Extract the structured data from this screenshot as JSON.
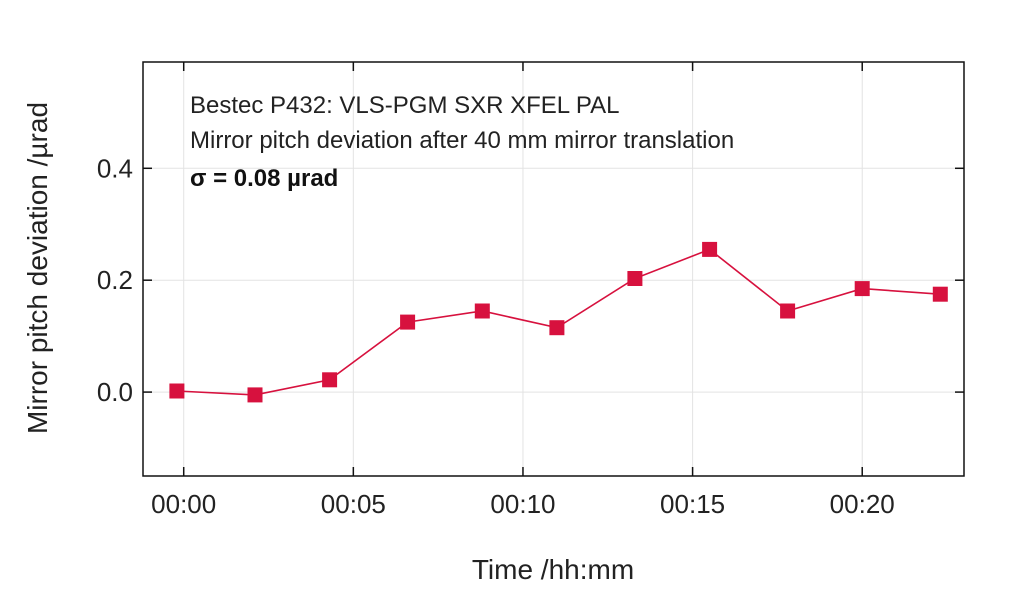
{
  "chart_data": {
    "type": "line",
    "title": "",
    "xlabel": "Time /hh:mm",
    "ylabel": "Mirror pitch deviation /µrad",
    "x_tick_labels": [
      "00:00",
      "00:05",
      "00:10",
      "00:15",
      "00:20"
    ],
    "x_ticks_minutes": [
      0,
      5,
      10,
      15,
      20
    ],
    "y_tick_labels": [
      "0.0",
      "0.2",
      "0.4"
    ],
    "y_ticks": [
      0.0,
      0.2,
      0.4
    ],
    "xlim_minutes": [
      -1.2,
      23.0
    ],
    "ylim": [
      -0.15,
      0.59
    ],
    "grid": true,
    "marker": "square",
    "colors": {
      "series": "#d7113e",
      "axis": "#111111",
      "grid": "#e3e3e3"
    },
    "annotations": [
      "Bestec P432: VLS-PGM SXR XFEL PAL",
      "Mirror pitch deviation after 40 mm mirror translation",
      "σ = 0.08 µrad"
    ],
    "series": [
      {
        "x_minutes": [
          -0.2,
          2.1,
          4.3,
          6.6,
          8.8,
          11.0,
          13.3,
          15.5,
          17.8,
          20.0,
          22.3
        ],
        "values": [
          0.002,
          -0.005,
          0.022,
          0.125,
          0.145,
          0.115,
          0.203,
          0.255,
          0.145,
          0.185,
          0.175
        ]
      }
    ]
  }
}
